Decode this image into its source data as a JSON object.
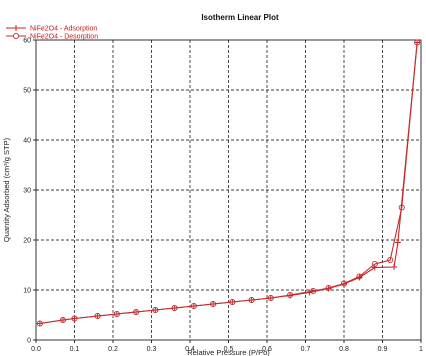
{
  "chart_data": {
    "type": "line",
    "title": "Isotherm Linear Plot",
    "xlabel": "Relative Pressure (P/Po)",
    "ylabel": "Quantity Adsorbed (cm³/g STP)",
    "xlim": [
      0.0,
      1.0
    ],
    "ylim": [
      0,
      60
    ],
    "x_ticks": [
      "0.0",
      "0.1",
      "0.2",
      "0.3",
      "0.4",
      "0.5",
      "0.6",
      "0.7",
      "0.8",
      "0.9",
      "1"
    ],
    "y_ticks": [
      "0",
      "10",
      "20",
      "30",
      "40",
      "50",
      "60"
    ],
    "grid": true,
    "legend_position": "top-left",
    "series": [
      {
        "name": "NiFe2O4 - Adsorption",
        "marker": "plus",
        "color": "#d42020",
        "x": [
          0.01,
          0.07,
          0.1,
          0.16,
          0.21,
          0.26,
          0.31,
          0.36,
          0.41,
          0.46,
          0.51,
          0.56,
          0.61,
          0.66,
          0.71,
          0.76,
          0.8,
          0.84,
          0.88,
          0.93,
          0.94,
          0.99
        ],
        "y": [
          3.3,
          4.0,
          4.3,
          4.8,
          5.2,
          5.6,
          6.0,
          6.4,
          6.8,
          7.2,
          7.6,
          8.0,
          8.4,
          8.9,
          9.5,
          10.3,
          11.2,
          12.5,
          14.5,
          14.6,
          19.5,
          59.5
        ]
      },
      {
        "name": "NiFe2O4 - Desorption",
        "marker": "circle",
        "color": "#c03030",
        "x": [
          0.99,
          0.95,
          0.92,
          0.88,
          0.84,
          0.8,
          0.76,
          0.72,
          0.66,
          0.61,
          0.56,
          0.51,
          0.46,
          0.41,
          0.36,
          0.31,
          0.26,
          0.21,
          0.16,
          0.1,
          0.07,
          0.01
        ],
        "y": [
          59.5,
          26.5,
          16.0,
          15.2,
          12.7,
          11.3,
          10.4,
          9.8,
          9.0,
          8.4,
          8.0,
          7.6,
          7.2,
          6.8,
          6.4,
          6.0,
          5.6,
          5.2,
          4.8,
          4.3,
          4.0,
          3.3
        ]
      }
    ]
  }
}
